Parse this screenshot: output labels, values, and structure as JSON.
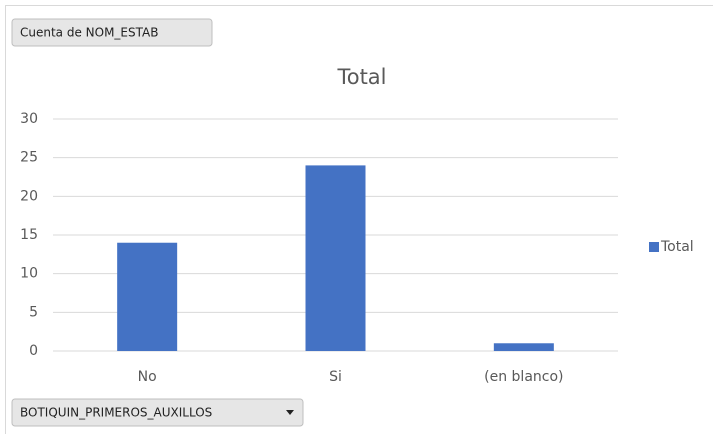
{
  "chart_data": {
    "type": "bar",
    "title": "Total",
    "value_field_button": "Cuenta de NOM_ESTAB",
    "axis_field_button": "BOTIQUIN_PRIMEROS_AUXILLOS",
    "categories": [
      "No",
      "Si",
      "(en blanco)"
    ],
    "series": [
      {
        "name": "Total",
        "color": "#4472c4",
        "values": [
          14,
          24,
          1
        ]
      }
    ],
    "ylim": [
      0,
      30
    ],
    "yticks": [
      0,
      5,
      10,
      15,
      20,
      25,
      30
    ],
    "grid": true,
    "legend": "right"
  }
}
